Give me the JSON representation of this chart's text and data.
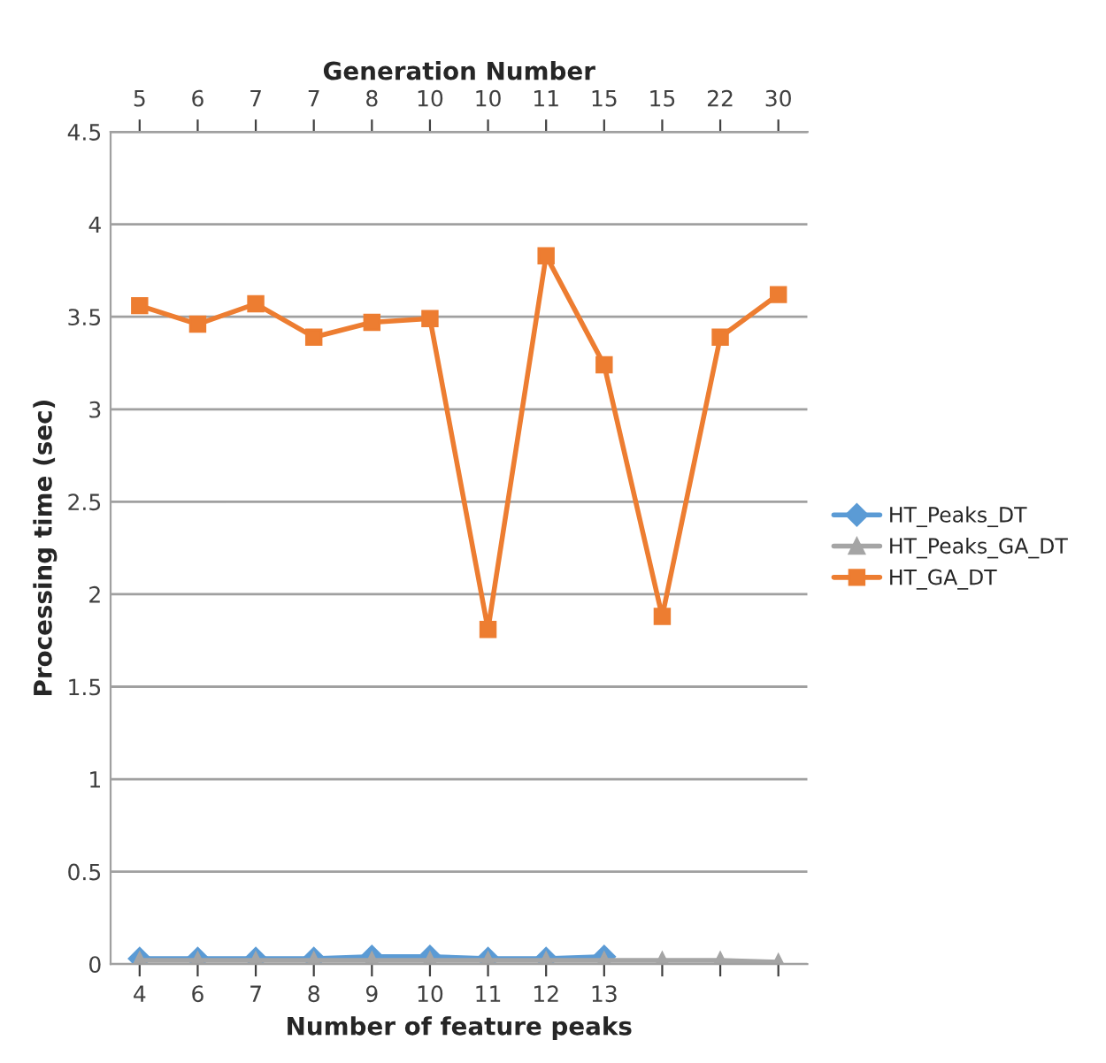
{
  "chart_data": {
    "type": "line",
    "xlabel": "Number of feature peaks",
    "ylabel": "Processing time (sec)",
    "x2label": "Generation Number",
    "categories": [
      "4",
      "6",
      "7",
      "8",
      "9",
      "10",
      "11",
      "12",
      "13",
      null,
      null,
      null
    ],
    "annotations": [
      "5",
      "6",
      "7",
      "7",
      "8",
      "10",
      "10",
      "11",
      "15",
      "15",
      "22",
      "30"
    ],
    "ylim": [
      0,
      4.5
    ],
    "yticks": [
      0,
      0.5,
      1,
      1.5,
      2,
      2.5,
      3,
      3.5,
      4,
      4.5
    ],
    "grid": "y",
    "legend": "right",
    "series": [
      {
        "name": "HT_Peaks_DT",
        "color": "#5b9bd5",
        "marker": "diamond",
        "values": [
          0.03,
          0.03,
          0.03,
          0.03,
          0.04,
          0.04,
          0.03,
          0.03,
          0.04,
          null,
          null,
          null
        ]
      },
      {
        "name": "HT_Peaks_GA_DT",
        "color": "#a5a5a5",
        "marker": "triangle",
        "values": [
          0.02,
          0.02,
          0.02,
          0.02,
          0.02,
          0.02,
          0.02,
          0.02,
          0.02,
          0.02,
          0.02,
          0.01
        ]
      },
      {
        "name": "HT_GA_DT",
        "color": "#ed7d31",
        "marker": "square",
        "values": [
          3.56,
          3.46,
          3.57,
          3.39,
          3.47,
          3.49,
          1.81,
          3.83,
          3.24,
          1.88,
          3.39,
          3.62
        ]
      }
    ]
  }
}
